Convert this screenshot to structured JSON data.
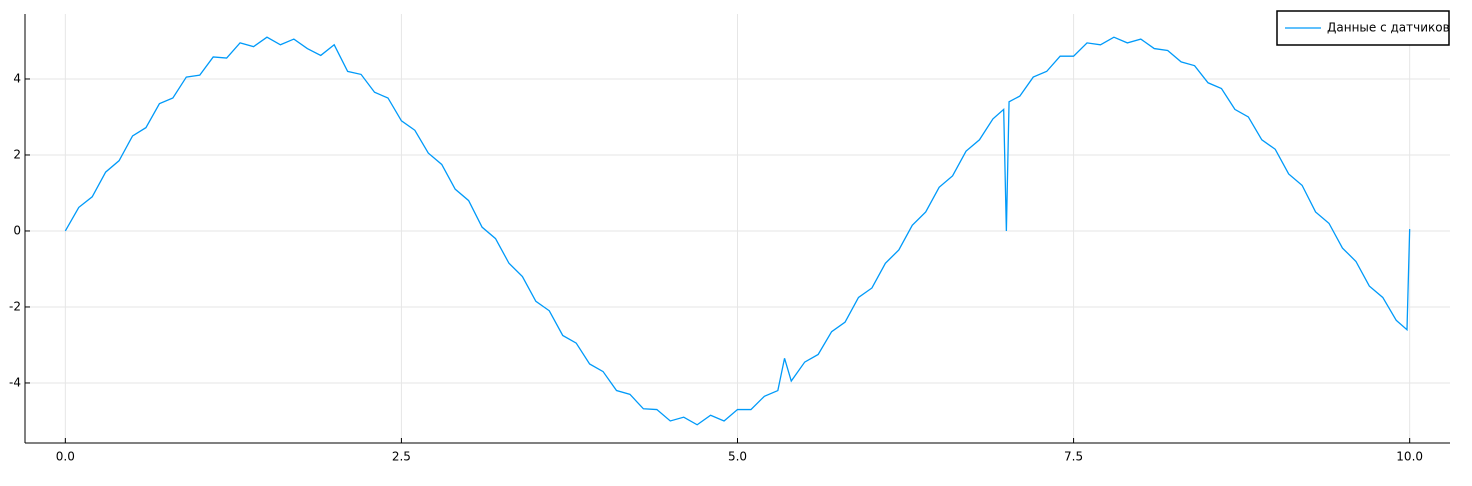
{
  "chart_data": {
    "type": "line",
    "x": [
      0,
      0.1,
      0.2,
      0.3,
      0.4,
      0.5,
      0.6,
      0.7,
      0.8,
      0.9,
      1.0,
      1.1,
      1.2,
      1.3,
      1.4,
      1.5,
      1.6,
      1.7,
      1.8,
      1.9,
      2.0,
      2.1,
      2.2,
      2.3,
      2.4,
      2.5,
      2.6,
      2.7,
      2.8,
      2.9,
      3.0,
      3.1,
      3.2,
      3.3,
      3.4,
      3.5,
      3.6,
      3.7,
      3.8,
      3.9,
      4.0,
      4.1,
      4.2,
      4.3,
      4.4,
      4.5,
      4.6,
      4.7,
      4.8,
      4.9,
      5.0,
      5.1,
      5.2,
      5.3,
      5.35,
      5.4,
      5.5,
      5.6,
      5.7,
      5.8,
      5.9,
      6.0,
      6.1,
      6.2,
      6.3,
      6.4,
      6.5,
      6.6,
      6.7,
      6.8,
      6.9,
      6.98,
      7.0,
      7.02,
      7.1,
      7.2,
      7.3,
      7.4,
      7.5,
      7.6,
      7.7,
      7.8,
      7.9,
      8.0,
      8.1,
      8.2,
      8.3,
      8.4,
      8.5,
      8.6,
      8.7,
      8.8,
      8.9,
      9.0,
      9.1,
      9.2,
      9.3,
      9.4,
      9.5,
      9.6,
      9.7,
      9.8,
      9.9,
      9.98,
      10.0
    ],
    "series": [
      {
        "name": "Данные с датчиков",
        "color": "#009af9",
        "values": [
          0,
          0.62,
          0.9,
          1.55,
          1.85,
          2.5,
          2.72,
          3.35,
          3.5,
          4.05,
          4.1,
          4.58,
          4.55,
          4.95,
          4.85,
          5.1,
          4.9,
          5.05,
          4.8,
          4.62,
          4.9,
          4.2,
          4.12,
          3.65,
          3.5,
          2.9,
          2.65,
          2.05,
          1.75,
          1.1,
          0.8,
          0.1,
          -0.2,
          -0.85,
          -1.2,
          -1.85,
          -2.1,
          -2.75,
          -2.95,
          -3.5,
          -3.7,
          -4.2,
          -4.3,
          -4.68,
          -4.7,
          -5.0,
          -4.9,
          -5.1,
          -4.85,
          -5.0,
          -4.7,
          -4.7,
          -4.35,
          -4.2,
          -3.35,
          -3.95,
          -3.45,
          -3.25,
          -2.65,
          -2.4,
          -1.75,
          -1.5,
          -0.85,
          -0.5,
          0.15,
          0.5,
          1.15,
          1.45,
          2.1,
          2.4,
          2.95,
          3.2,
          0,
          3.4,
          3.55,
          4.05,
          4.2,
          4.6,
          4.6,
          4.95,
          4.9,
          5.1,
          4.95,
          5.05,
          4.8,
          4.75,
          4.45,
          4.35,
          3.9,
          3.75,
          3.2,
          3.0,
          2.4,
          2.15,
          1.5,
          1.2,
          0.5,
          0.2,
          -0.45,
          -0.8,
          -1.45,
          -1.75,
          -2.35,
          -2.6,
          0.05
        ]
      }
    ],
    "xlim": [
      -0.3,
      10.3
    ],
    "ylim": [
      -5.58,
      5.71
    ],
    "xticks": [
      {
        "value": 0,
        "label": "0.0"
      },
      2.5,
      {
        "value": 5,
        "label": "5.0"
      },
      7.5,
      {
        "value": 10,
        "label": "10.0"
      }
    ],
    "yticks": [
      -4,
      -2,
      0,
      2,
      4
    ],
    "grid": true,
    "legend": "top-right"
  }
}
